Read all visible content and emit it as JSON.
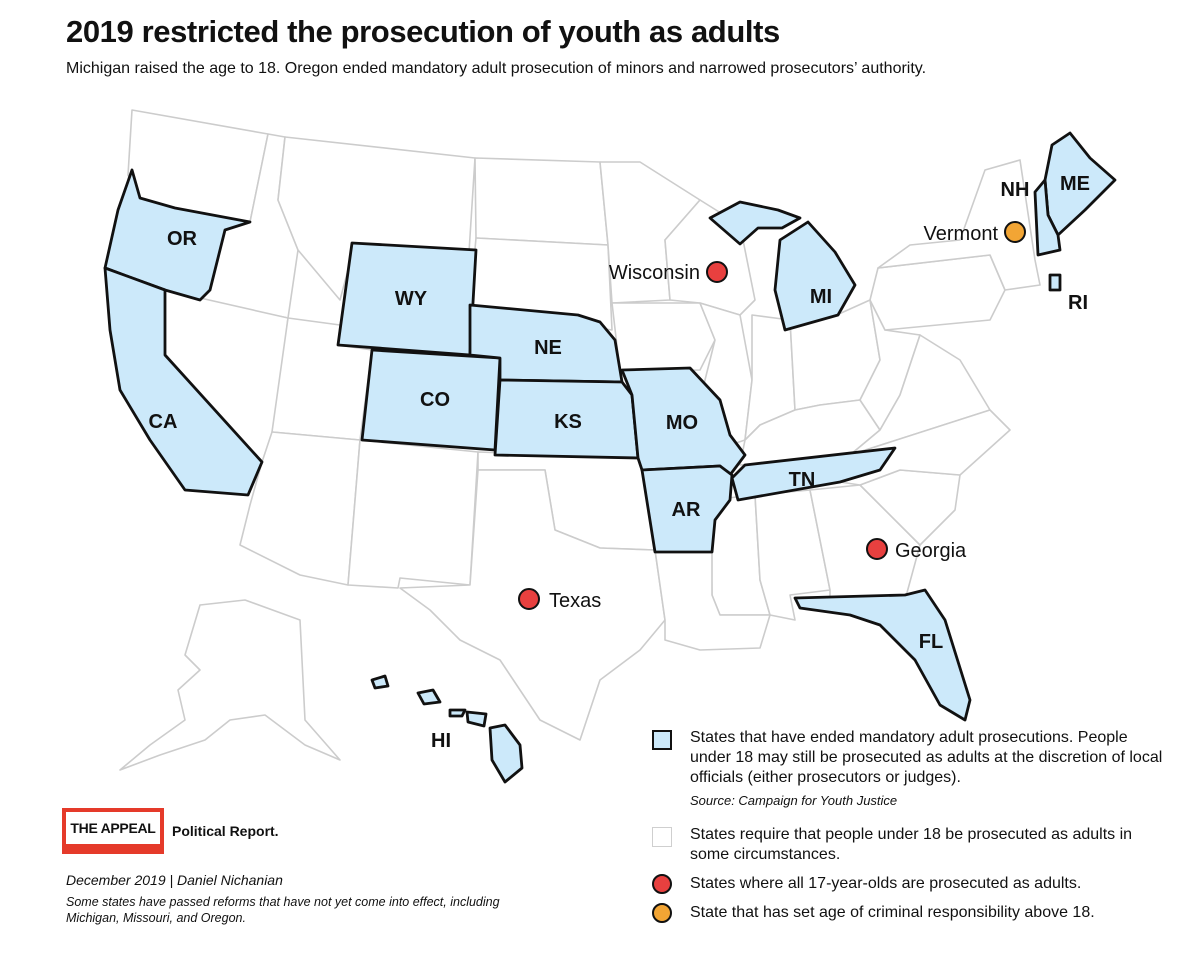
{
  "title": "2019 restricted the prosecution of youth as adults",
  "subtitle": "Michigan raised the age to 18. Oregon ended mandatory adult prosecution of minors and narrowed prosecutors’ authority.",
  "colors": {
    "ended_mandatory": "#cce9fa",
    "requires_some": "#ffffff",
    "all_17_adult": "#e8403f",
    "above_18": "#f2a534",
    "border": "#111111",
    "grid": "#cccccc",
    "logo_red": "#e53a2a"
  },
  "map": {
    "state_labels": {
      "OR": "OR",
      "CA": "CA",
      "WY": "WY",
      "CO": "CO",
      "NE": "NE",
      "KS": "KS",
      "MO": "MO",
      "AR": "AR",
      "TN": "TN",
      "MI": "MI",
      "FL": "FL",
      "ME": "ME",
      "NH": "NH",
      "RI": "RI",
      "HI": "HI"
    },
    "dot_labels": {
      "wisconsin": "Wisconsin",
      "texas": "Texas",
      "georgia": "Georgia",
      "vermont": "Vermont"
    },
    "categories": {
      "ended_mandatory": [
        "OR",
        "CA",
        "WY",
        "CO",
        "NE",
        "KS",
        "MO",
        "AR",
        "TN",
        "MI",
        "FL",
        "ME",
        "NH",
        "RI",
        "HI"
      ],
      "all_17_adult": [
        "Wisconsin",
        "Texas",
        "Georgia"
      ],
      "above_18": [
        "Vermont"
      ]
    }
  },
  "legend": {
    "item1_text": "States that have ended mandatory adult prosecutions. People under 18 may still be prosecuted as adults at the discretion of local officials (either prosecutors or judges).",
    "item1_source": "Source: Campaign for Youth Justice",
    "item2_text": "States require that people under 18 be prosecuted as adults in some circumstances.",
    "item3_text": "States where all 17-year-olds are prosecuted as adults.",
    "item4_text": "State that has set age of criminal responsibility above 18."
  },
  "logo": {
    "name": "THE APPEAL",
    "tagline": "Political Report."
  },
  "credit": "December 2019 | Daniel Nichanian",
  "note": "Some states have passed reforms that have not yet come into effect, including Michigan, Missouri, and Oregon."
}
